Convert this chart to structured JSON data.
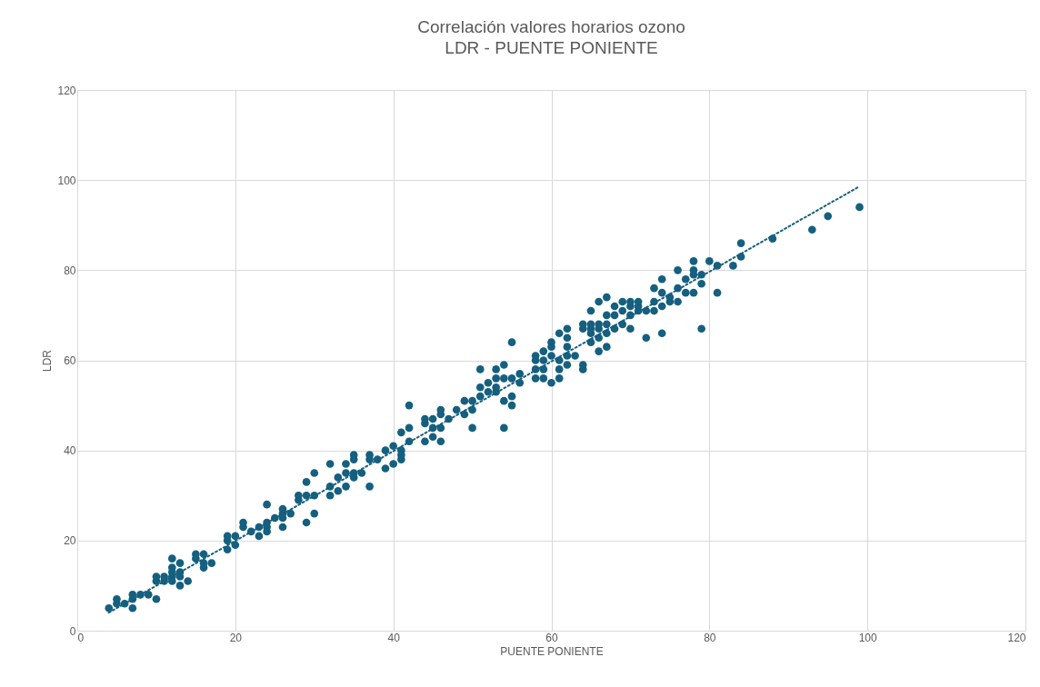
{
  "chart_data": {
    "type": "scatter",
    "title": "Correlación valores horarios ozono",
    "subtitle": "LDR - PUENTE PONIENTE",
    "xlabel": "PUENTE PONIENTE",
    "ylabel": "LDR",
    "xlim": [
      0,
      120
    ],
    "ylim": [
      0,
      120
    ],
    "xticks": [
      0,
      20,
      40,
      60,
      80,
      100,
      120
    ],
    "yticks": [
      0,
      20,
      40,
      60,
      80,
      100,
      120
    ],
    "grid": true,
    "series": [
      {
        "marker": "circle",
        "color": "#155f7f",
        "x": [
          4,
          5,
          5,
          6,
          7,
          7,
          7,
          8,
          9,
          10,
          10,
          10,
          11,
          11,
          12,
          12,
          12,
          12,
          12,
          13,
          13,
          13,
          13,
          14,
          15,
          15,
          16,
          16,
          16,
          17,
          19,
          19,
          19,
          20,
          20,
          21,
          21,
          22,
          23,
          23,
          24,
          24,
          24,
          24,
          25,
          26,
          26,
          26,
          26,
          27,
          28,
          28,
          29,
          29,
          29,
          30,
          30,
          30,
          32,
          32,
          32,
          33,
          33,
          34,
          34,
          34,
          35,
          35,
          35,
          35,
          36,
          37,
          37,
          37,
          38,
          39,
          39,
          40,
          40,
          41,
          41,
          41,
          41,
          42,
          42,
          42,
          44,
          44,
          44,
          45,
          45,
          45,
          46,
          46,
          46,
          46,
          47,
          48,
          49,
          49,
          50,
          50,
          50,
          51,
          51,
          51,
          52,
          52,
          53,
          53,
          53,
          53,
          54,
          54,
          54,
          54,
          55,
          55,
          55,
          55,
          56,
          56,
          58,
          58,
          58,
          58,
          59,
          59,
          59,
          59,
          60,
          60,
          60,
          60,
          61,
          61,
          61,
          61,
          62,
          62,
          62,
          62,
          62,
          63,
          64,
          64,
          64,
          64,
          65,
          65,
          65,
          65,
          65,
          66,
          66,
          66,
          66,
          66,
          67,
          67,
          67,
          67,
          67,
          68,
          68,
          68,
          69,
          69,
          69,
          70,
          70,
          70,
          70,
          71,
          71,
          71,
          72,
          72,
          73,
          73,
          73,
          74,
          74,
          74,
          74,
          75,
          75,
          76,
          76,
          76,
          77,
          77,
          78,
          78,
          78,
          78,
          79,
          79,
          79,
          80,
          81,
          81,
          83,
          84,
          84,
          88,
          93,
          95,
          99
        ],
        "values": [
          5,
          6,
          7,
          6,
          5,
          7,
          8,
          8,
          8,
          7,
          11,
          12,
          11,
          12,
          11,
          12,
          13,
          14,
          16,
          10,
          12,
          13,
          15,
          11,
          16,
          17,
          14,
          15,
          17,
          15,
          18,
          20,
          21,
          19,
          21,
          23,
          24,
          22,
          21,
          23,
          22,
          23,
          24,
          28,
          25,
          23,
          25,
          26,
          27,
          26,
          29,
          30,
          24,
          30,
          33,
          26,
          30,
          35,
          30,
          32,
          37,
          31,
          34,
          32,
          35,
          37,
          34,
          35,
          38,
          39,
          35,
          32,
          38,
          39,
          38,
          36,
          40,
          37,
          41,
          38,
          39,
          40,
          44,
          42,
          45,
          50,
          42,
          46,
          47,
          43,
          45,
          47,
          42,
          45,
          48,
          49,
          47,
          49,
          48,
          51,
          45,
          49,
          51,
          52,
          54,
          58,
          53,
          55,
          53,
          54,
          56,
          58,
          45,
          51,
          56,
          59,
          50,
          52,
          56,
          64,
          55,
          57,
          56,
          58,
          60,
          61,
          56,
          58,
          60,
          62,
          55,
          61,
          63,
          64,
          56,
          58,
          60,
          66,
          59,
          61,
          63,
          65,
          67,
          61,
          58,
          59,
          67,
          68,
          64,
          66,
          67,
          68,
          71,
          62,
          65,
          67,
          68,
          73,
          63,
          66,
          68,
          70,
          74,
          67,
          70,
          72,
          68,
          71,
          73,
          67,
          70,
          72,
          73,
          71,
          72,
          73,
          65,
          71,
          71,
          73,
          76,
          66,
          72,
          75,
          78,
          73,
          74,
          73,
          76,
          80,
          75,
          78,
          75,
          79,
          80,
          82,
          67,
          77,
          79,
          82,
          75,
          81,
          81,
          83,
          86,
          87,
          89,
          92,
          94
        ]
      },
      {
        "type": "line",
        "color": "#155f7f",
        "line_style": "dotted",
        "x": [
          4,
          99
        ],
        "values": [
          4,
          98.6
        ]
      }
    ]
  }
}
